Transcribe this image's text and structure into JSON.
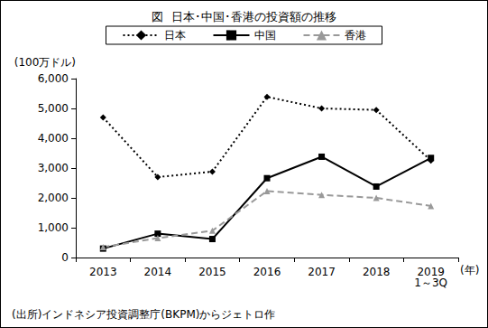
{
  "chart_data": {
    "type": "line",
    "title": "図  日本･中国･香港の投資額の推移",
    "ylabel": "(100万ドル)",
    "xlabel": "(年)",
    "annotations": [
      "(出所)インドネシア投資調整庁(BKPM)からジェトロ作"
    ],
    "categories": [
      "2013",
      "2014",
      "2015",
      "2016",
      "2017",
      "2018",
      "2019\n1～3Q"
    ],
    "series": [
      {
        "name": "日本",
        "color": "#000000",
        "marker": "diamond",
        "line_style": "dotted",
        "values": [
          4700,
          2700,
          2880,
          5390,
          5000,
          4950,
          3250
        ]
      },
      {
        "name": "中国",
        "color": "#000000",
        "marker": "rect",
        "line_style": "solid",
        "values": [
          300,
          800,
          620,
          2660,
          3380,
          2380,
          3340
        ]
      },
      {
        "name": "香港",
        "color": "#999999",
        "marker": "triangle",
        "line_style": "dashed",
        "values": [
          350,
          650,
          900,
          2230,
          2100,
          2000,
          1730
        ]
      }
    ],
    "ylim": [
      0,
      6000
    ],
    "yticks": [
      0,
      {
        "value": 1000,
        "label": "1,000"
      },
      {
        "value": 2000,
        "label": "2,000"
      },
      {
        "value": 3000,
        "label": "3,000"
      },
      {
        "value": 4000,
        "label": "4,000"
      },
      {
        "value": 5000,
        "label": "5,000"
      },
      {
        "value": 6000,
        "label": "6,000"
      }
    ],
    "grid": false,
    "legend": "top"
  }
}
